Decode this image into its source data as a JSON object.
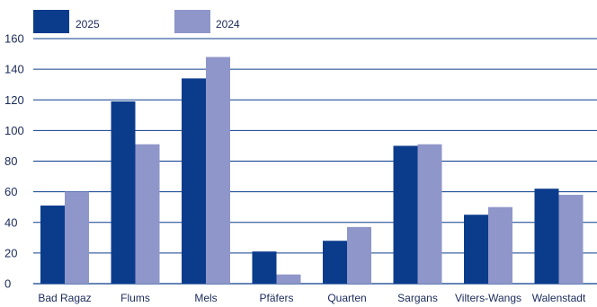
{
  "chart_data": {
    "type": "bar",
    "categories": [
      "Bad Ragaz",
      "Flums",
      "Mels",
      "Pfäfers",
      "Quarten",
      "Sargans",
      "Vilters-Wangs",
      "Walenstadt"
    ],
    "series": [
      {
        "name": "2025",
        "color": "#0b3c8c",
        "values": [
          51,
          119,
          134,
          21,
          28,
          90,
          45,
          62
        ]
      },
      {
        "name": "2024",
        "color": "#8f96c9",
        "values": [
          60,
          91,
          148,
          6,
          37,
          91,
          50,
          58
        ]
      }
    ],
    "ylim": [
      0,
      160
    ],
    "yticks": [
      0,
      20,
      40,
      60,
      80,
      100,
      120,
      140,
      160
    ],
    "grid": true,
    "legend": "top-left",
    "title": "",
    "xlabel": "",
    "ylabel": ""
  }
}
